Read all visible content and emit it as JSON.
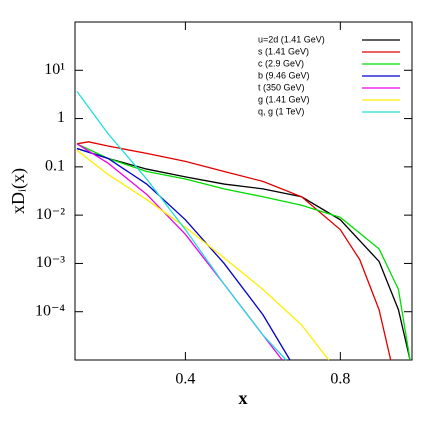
{
  "chart_data": {
    "type": "line",
    "title": null,
    "xlabel": "x",
    "ylabel": "xDᵢ(x)",
    "xlim": [
      0.115,
      0.985
    ],
    "xticks": [
      0.4,
      0.8
    ],
    "ylim": [
      1e-05,
      100
    ],
    "log_y": true,
    "yticks": [
      {
        "value": 10,
        "label": "10¹"
      },
      1,
      0.1,
      {
        "value": 0.01,
        "label": "10⁻²"
      },
      {
        "value": 0.001,
        "label": "10⁻³"
      },
      {
        "value": 0.0001,
        "label": "10⁻⁴"
      }
    ],
    "legend": "upper right",
    "series": [
      {
        "name": "u=2d (1.41 GeV)",
        "color": "#000000",
        "x": [
          0.12,
          0.2,
          0.3,
          0.4,
          0.5,
          0.6,
          0.7,
          0.8,
          0.9,
          0.95,
          0.98
        ],
        "values": [
          0.24,
          0.15,
          0.09,
          0.062,
          0.044,
          0.035,
          0.024,
          0.008,
          0.0011,
          0.00011,
          1e-05
        ]
      },
      {
        "name": "s (1.41 GeV)",
        "color": "#e00000",
        "x": [
          0.12,
          0.15,
          0.2,
          0.3,
          0.4,
          0.5,
          0.6,
          0.7,
          0.8,
          0.85,
          0.9,
          0.93
        ],
        "values": [
          0.3,
          0.33,
          0.27,
          0.19,
          0.13,
          0.08,
          0.05,
          0.024,
          0.005,
          0.0012,
          0.00011,
          1e-05
        ]
      },
      {
        "name": "c (2.9 GeV)",
        "color": "#00dd00",
        "x": [
          0.12,
          0.2,
          0.3,
          0.4,
          0.5,
          0.6,
          0.7,
          0.8,
          0.9,
          0.95,
          0.98
        ],
        "values": [
          0.3,
          0.15,
          0.08,
          0.056,
          0.035,
          0.024,
          0.016,
          0.009,
          0.002,
          0.00029,
          1e-05
        ]
      },
      {
        "name": "b (9.46 GeV)",
        "color": "#0000cc",
        "x": [
          0.12,
          0.2,
          0.3,
          0.4,
          0.5,
          0.6,
          0.67
        ],
        "values": [
          0.24,
          0.15,
          0.044,
          0.008,
          0.001,
          8.7e-05,
          1e-05
        ]
      },
      {
        "name": "t (350 GeV)",
        "color": "#ee00ee",
        "x": [
          0.12,
          0.2,
          0.3,
          0.4,
          0.5,
          0.6,
          0.65
        ],
        "values": [
          0.3,
          0.12,
          0.027,
          0.004,
          0.00037,
          3.3e-05,
          1e-05
        ]
      },
      {
        "name": "g (1.41 GeV)",
        "color": "#ffee00",
        "x": [
          0.12,
          0.2,
          0.3,
          0.4,
          0.5,
          0.6,
          0.7,
          0.77
        ],
        "values": [
          0.22,
          0.07,
          0.021,
          0.0056,
          0.0013,
          0.00029,
          5.3e-05,
          1e-05
        ]
      },
      {
        "name": "q, g (1 TeV)",
        "color": "#22dddd",
        "x": [
          0.12,
          0.2,
          0.3,
          0.4,
          0.5,
          0.6,
          0.66
        ],
        "values": [
          3.65,
          0.49,
          0.056,
          0.005,
          0.00037,
          3.3e-05,
          1e-05
        ]
      }
    ]
  }
}
